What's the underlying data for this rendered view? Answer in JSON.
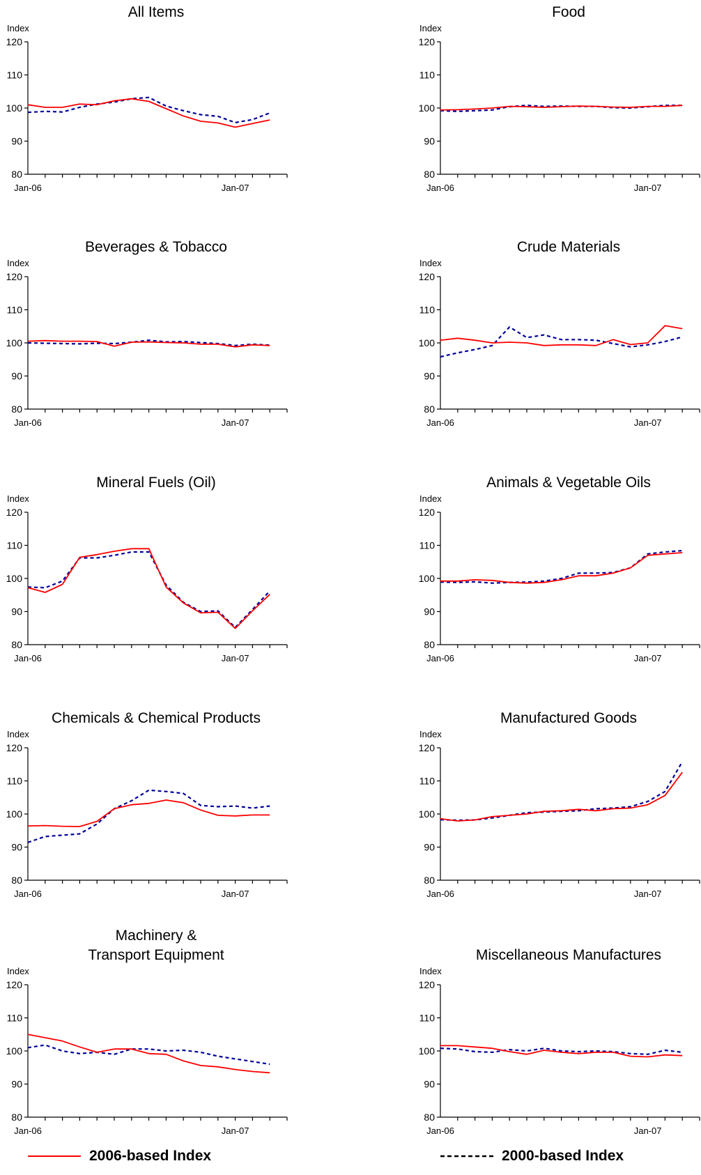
{
  "legend": {
    "series_2006": {
      "label": "2006-based Index",
      "color": "#ff0000",
      "style": "solid"
    },
    "series_2000": {
      "label": "2000-based Index",
      "color": "#000099",
      "style": "dashed"
    }
  },
  "chart_data": [
    {
      "type": "line",
      "title": "All Items",
      "ylabel": "Index",
      "ylim": [
        80,
        120
      ],
      "yticks": [
        80,
        90,
        100,
        110,
        120
      ],
      "x": [
        "Jan-06",
        "Feb-06",
        "Mar-06",
        "Apr-06",
        "May-06",
        "Jun-06",
        "Jul-06",
        "Aug-06",
        "Sep-06",
        "Oct-06",
        "Nov-06",
        "Dec-06",
        "Jan-07",
        "Feb-07",
        "Mar-07"
      ],
      "xtick_labels": {
        "0": "Jan-06",
        "12": "Jan-07"
      },
      "series": [
        {
          "name": "2006-based Index",
          "values": [
            101.0,
            100.2,
            100.2,
            101.2,
            101.0,
            102.2,
            102.8,
            102.0,
            99.8,
            97.6,
            96.0,
            95.5,
            94.2,
            95.3,
            96.4
          ]
        },
        {
          "name": "2000-based Index",
          "values": [
            98.7,
            99.0,
            98.8,
            100.2,
            101.2,
            101.8,
            102.8,
            103.2,
            100.6,
            99.2,
            98.0,
            97.5,
            95.6,
            96.5,
            98.5
          ]
        }
      ]
    },
    {
      "type": "line",
      "title": "Food",
      "ylabel": "Index",
      "ylim": [
        80,
        120
      ],
      "yticks": [
        80,
        90,
        100,
        110,
        120
      ],
      "x": [
        "Jan-06",
        "Feb-06",
        "Mar-06",
        "Apr-06",
        "May-06",
        "Jun-06",
        "Jul-06",
        "Aug-06",
        "Sep-06",
        "Oct-06",
        "Nov-06",
        "Dec-06",
        "Jan-07",
        "Feb-07",
        "Mar-07"
      ],
      "xtick_labels": {
        "0": "Jan-06",
        "12": "Jan-07"
      },
      "series": [
        {
          "name": "2006-based Index",
          "values": [
            99.4,
            99.5,
            99.7,
            100.0,
            100.5,
            100.4,
            100.2,
            100.4,
            100.6,
            100.5,
            100.3,
            100.2,
            100.5,
            100.5,
            100.8
          ]
        },
        {
          "name": "2000-based Index",
          "values": [
            99.2,
            99.0,
            99.2,
            99.4,
            100.4,
            100.8,
            100.5,
            100.6,
            100.5,
            100.5,
            100.1,
            100.0,
            100.4,
            100.8,
            100.8
          ]
        }
      ]
    },
    {
      "type": "line",
      "title": "Beverages & Tobacco",
      "ylabel": "Index",
      "ylim": [
        80,
        120
      ],
      "yticks": [
        80,
        90,
        100,
        110,
        120
      ],
      "x": [
        "Jan-06",
        "Feb-06",
        "Mar-06",
        "Apr-06",
        "May-06",
        "Jun-06",
        "Jul-06",
        "Aug-06",
        "Sep-06",
        "Oct-06",
        "Nov-06",
        "Dec-06",
        "Jan-07",
        "Feb-07",
        "Mar-07"
      ],
      "xtick_labels": {
        "0": "Jan-06",
        "12": "Jan-07"
      },
      "series": [
        {
          "name": "2006-based Index",
          "values": [
            100.5,
            100.7,
            100.5,
            100.5,
            100.4,
            99.0,
            100.2,
            100.3,
            100.1,
            100.0,
            99.6,
            99.6,
            98.8,
            99.4,
            99.2
          ]
        },
        {
          "name": "2000-based Index",
          "values": [
            100.0,
            99.9,
            99.8,
            99.7,
            99.9,
            99.8,
            100.2,
            100.8,
            100.3,
            100.4,
            100.1,
            99.8,
            99.2,
            99.6,
            99.3
          ]
        }
      ]
    },
    {
      "type": "line",
      "title": "Crude Materials",
      "ylabel": "Index",
      "ylim": [
        80,
        120
      ],
      "yticks": [
        80,
        90,
        100,
        110,
        120
      ],
      "x": [
        "Jan-06",
        "Feb-06",
        "Mar-06",
        "Apr-06",
        "May-06",
        "Jun-06",
        "Jul-06",
        "Aug-06",
        "Sep-06",
        "Oct-06",
        "Nov-06",
        "Dec-06",
        "Jan-07",
        "Feb-07",
        "Mar-07"
      ],
      "xtick_labels": {
        "0": "Jan-06",
        "12": "Jan-07"
      },
      "series": [
        {
          "name": "2006-based Index",
          "values": [
            100.8,
            101.4,
            100.8,
            100.0,
            100.2,
            100.0,
            99.2,
            99.4,
            99.4,
            99.2,
            101.0,
            99.5,
            100.0,
            105.2,
            104.3
          ]
        },
        {
          "name": "2000-based Index",
          "values": [
            95.8,
            97.0,
            98.0,
            99.2,
            104.8,
            101.6,
            102.4,
            101.0,
            101.0,
            100.8,
            99.8,
            98.8,
            99.4,
            100.4,
            101.8
          ]
        }
      ]
    },
    {
      "type": "line",
      "title": "Mineral Fuels (Oil)",
      "ylabel": "Index",
      "ylim": [
        80,
        120
      ],
      "yticks": [
        80,
        90,
        100,
        110,
        120
      ],
      "x": [
        "Jan-06",
        "Feb-06",
        "Mar-06",
        "Apr-06",
        "May-06",
        "Jun-06",
        "Jul-06",
        "Aug-06",
        "Sep-06",
        "Oct-06",
        "Nov-06",
        "Dec-06",
        "Jan-07",
        "Feb-07",
        "Mar-07"
      ],
      "xtick_labels": {
        "0": "Jan-06",
        "12": "Jan-07"
      },
      "series": [
        {
          "name": "2006-based Index",
          "values": [
            97.2,
            95.8,
            98.2,
            106.4,
            107.2,
            108.2,
            109.0,
            109.0,
            97.4,
            92.6,
            89.6,
            89.8,
            84.9,
            90.2,
            95.2
          ]
        },
        {
          "name": "2000-based Index",
          "values": [
            97.4,
            97.2,
            99.2,
            106.2,
            106.2,
            107.0,
            108.0,
            108.0,
            98.0,
            92.8,
            90.0,
            90.2,
            85.2,
            90.6,
            96.2
          ]
        }
      ]
    },
    {
      "type": "line",
      "title": "Animals & Vegetable Oils",
      "ylabel": "Index",
      "ylim": [
        80,
        120
      ],
      "yticks": [
        80,
        90,
        100,
        110,
        120
      ],
      "x": [
        "Jan-06",
        "Feb-06",
        "Mar-06",
        "Apr-06",
        "May-06",
        "Jun-06",
        "Jul-06",
        "Aug-06",
        "Sep-06",
        "Oct-06",
        "Nov-06",
        "Dec-06",
        "Jan-07",
        "Feb-07",
        "Mar-07"
      ],
      "xtick_labels": {
        "0": "Jan-06",
        "12": "Jan-07"
      },
      "series": [
        {
          "name": "2006-based Index",
          "values": [
            99.2,
            99.2,
            99.6,
            99.4,
            98.8,
            98.6,
            98.8,
            99.6,
            100.8,
            100.8,
            101.6,
            103.2,
            107.0,
            107.4,
            107.8
          ]
        },
        {
          "name": "2000-based Index",
          "values": [
            98.9,
            98.8,
            99.0,
            98.6,
            98.8,
            98.9,
            99.2,
            100.0,
            101.6,
            101.6,
            101.8,
            103.2,
            107.4,
            108.0,
            108.4
          ]
        }
      ]
    },
    {
      "type": "line",
      "title": "Chemicals & Chemical Products",
      "ylabel": "Index",
      "ylim": [
        80,
        120
      ],
      "yticks": [
        80,
        90,
        100,
        110,
        120
      ],
      "x": [
        "Jan-06",
        "Feb-06",
        "Mar-06",
        "Apr-06",
        "May-06",
        "Jun-06",
        "Jul-06",
        "Aug-06",
        "Sep-06",
        "Oct-06",
        "Nov-06",
        "Dec-06",
        "Jan-07",
        "Feb-07",
        "Mar-07"
      ],
      "xtick_labels": {
        "0": "Jan-06",
        "12": "Jan-07"
      },
      "series": [
        {
          "name": "2006-based Index",
          "values": [
            96.4,
            96.5,
            96.3,
            96.2,
            97.8,
            101.6,
            102.8,
            103.2,
            104.2,
            103.4,
            101.2,
            99.6,
            99.4,
            99.7,
            99.7
          ]
        },
        {
          "name": "2000-based Index",
          "values": [
            91.4,
            93.2,
            93.6,
            94.0,
            97.0,
            101.6,
            104.0,
            107.2,
            106.8,
            106.2,
            102.6,
            102.2,
            102.4,
            101.8,
            102.4
          ]
        }
      ]
    },
    {
      "type": "line",
      "title": "Manufactured Goods",
      "ylabel": "Index",
      "ylim": [
        80,
        120
      ],
      "yticks": [
        80,
        90,
        100,
        110,
        120
      ],
      "x": [
        "Jan-06",
        "Feb-06",
        "Mar-06",
        "Apr-06",
        "May-06",
        "Jun-06",
        "Jul-06",
        "Aug-06",
        "Sep-06",
        "Oct-06",
        "Nov-06",
        "Dec-06",
        "Jan-07",
        "Feb-07",
        "Mar-07"
      ],
      "xtick_labels": {
        "0": "Jan-06",
        "12": "Jan-07"
      },
      "series": [
        {
          "name": "2006-based Index",
          "values": [
            98.6,
            97.9,
            98.2,
            99.2,
            99.6,
            100.0,
            100.8,
            101.0,
            101.4,
            101.0,
            101.6,
            101.8,
            102.8,
            105.6,
            112.6
          ]
        },
        {
          "name": "2000-based Index",
          "values": [
            98.3,
            98.1,
            98.2,
            98.8,
            99.6,
            100.4,
            100.6,
            100.8,
            101.0,
            101.6,
            101.8,
            102.2,
            103.8,
            106.8,
            115.8
          ]
        }
      ]
    },
    {
      "type": "line",
      "title": "Machinery & Transport Equipment",
      "ylabel": "Index",
      "ylim": [
        80,
        120
      ],
      "yticks": [
        80,
        90,
        100,
        110,
        120
      ],
      "x": [
        "Jan-06",
        "Feb-06",
        "Mar-06",
        "Apr-06",
        "May-06",
        "Jun-06",
        "Jul-06",
        "Aug-06",
        "Sep-06",
        "Oct-06",
        "Nov-06",
        "Dec-06",
        "Jan-07",
        "Feb-07",
        "Mar-07"
      ],
      "xtick_labels": {
        "0": "Jan-06",
        "12": "Jan-07"
      },
      "series": [
        {
          "name": "2006-based Index",
          "values": [
            105.0,
            104.0,
            103.0,
            101.2,
            99.6,
            100.6,
            100.6,
            99.2,
            99.0,
            97.0,
            95.6,
            95.2,
            94.4,
            93.8,
            93.4
          ]
        },
        {
          "name": "2000-based Index",
          "values": [
            101.0,
            101.8,
            100.0,
            99.2,
            99.6,
            99.0,
            100.6,
            100.6,
            100.0,
            100.2,
            99.6,
            98.4,
            97.6,
            96.8,
            96.0
          ]
        }
      ]
    },
    {
      "type": "line",
      "title": "Miscellaneous Manufactures",
      "ylabel": "Index",
      "ylim": [
        80,
        120
      ],
      "yticks": [
        80,
        90,
        100,
        110,
        120
      ],
      "x": [
        "Jan-06",
        "Feb-06",
        "Mar-06",
        "Apr-06",
        "May-06",
        "Jun-06",
        "Jul-06",
        "Aug-06",
        "Sep-06",
        "Oct-06",
        "Nov-06",
        "Dec-06",
        "Jan-07",
        "Feb-07",
        "Mar-07"
      ],
      "xtick_labels": {
        "0": "Jan-06",
        "12": "Jan-07"
      },
      "series": [
        {
          "name": "2006-based Index",
          "values": [
            101.6,
            101.6,
            101.2,
            100.8,
            99.8,
            99.0,
            100.2,
            99.6,
            99.2,
            99.6,
            99.6,
            98.4,
            98.2,
            98.8,
            98.6
          ]
        },
        {
          "name": "2000-based Index",
          "values": [
            100.8,
            100.6,
            99.8,
            99.6,
            100.4,
            100.0,
            100.8,
            100.0,
            99.8,
            100.0,
            99.8,
            99.2,
            99.0,
            100.2,
            99.6
          ]
        }
      ]
    }
  ]
}
